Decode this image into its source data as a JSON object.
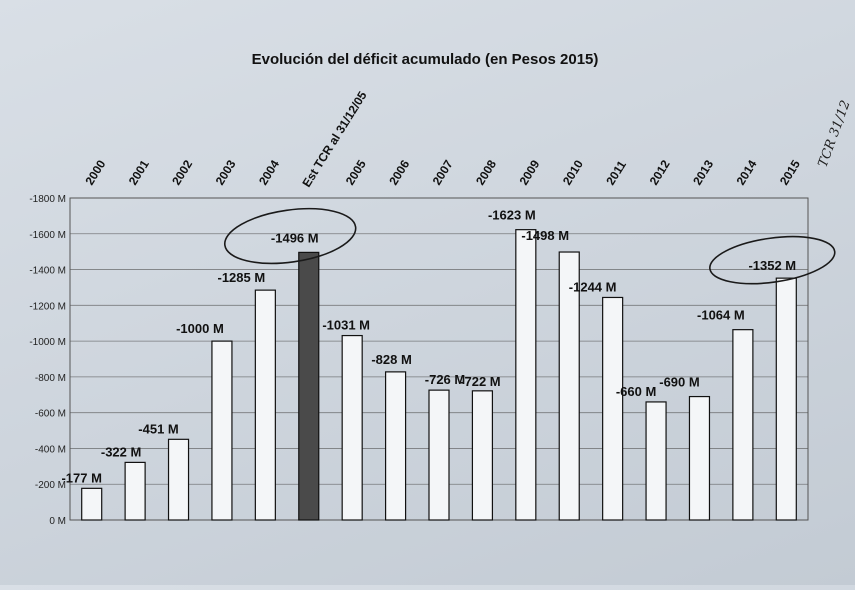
{
  "chart_data": {
    "type": "bar",
    "title": "Evolución del déficit acumulado (en Pesos 2015)",
    "xlabel": "",
    "ylabel": "",
    "ylim": [
      0,
      -1800
    ],
    "y_ticks": [
      "0 M",
      "-200 M",
      "-400 M",
      "-600 M",
      "-800 M",
      "-1000 M",
      "-1200 M",
      "-1400 M",
      "-1600 M",
      "-1800 M"
    ],
    "grid": true,
    "legend": "none",
    "categories": [
      "2000",
      "2001",
      "2002",
      "2003",
      "2004",
      "Est TCR al 31/12/05",
      "2005",
      "2006",
      "2007",
      "2008",
      "2009",
      "2010",
      "2011",
      "2012",
      "2013",
      "2014",
      "2015"
    ],
    "values": [
      -177,
      -322,
      -451,
      -1000,
      -1285,
      -1496,
      -1031,
      -828,
      -726,
      -722,
      -1623,
      -1498,
      -1244,
      -660,
      -690,
      -1064,
      -1352
    ],
    "data_labels": [
      "-177 M",
      "-322 M",
      "-451 M",
      "-1000 M",
      "-1285 M",
      "-1496 M",
      "-1031 M",
      "-828 M",
      "-726 M",
      "-722 M",
      "-1623 M",
      "-1498 M",
      "-1244 M",
      "-660 M",
      "-690 M",
      "-1064 M",
      "-1352 M"
    ],
    "highlighted_category": "Est TCR al 31/12/05",
    "colors": {
      "bar": "#f4f6f8",
      "highlight": "#4a4a4a",
      "stroke": "#111111",
      "grid": "#555555"
    },
    "annotations": {
      "handwritten": "TCR 31/12",
      "circled_labels": [
        "-1496 M",
        "-1352 M"
      ]
    }
  }
}
